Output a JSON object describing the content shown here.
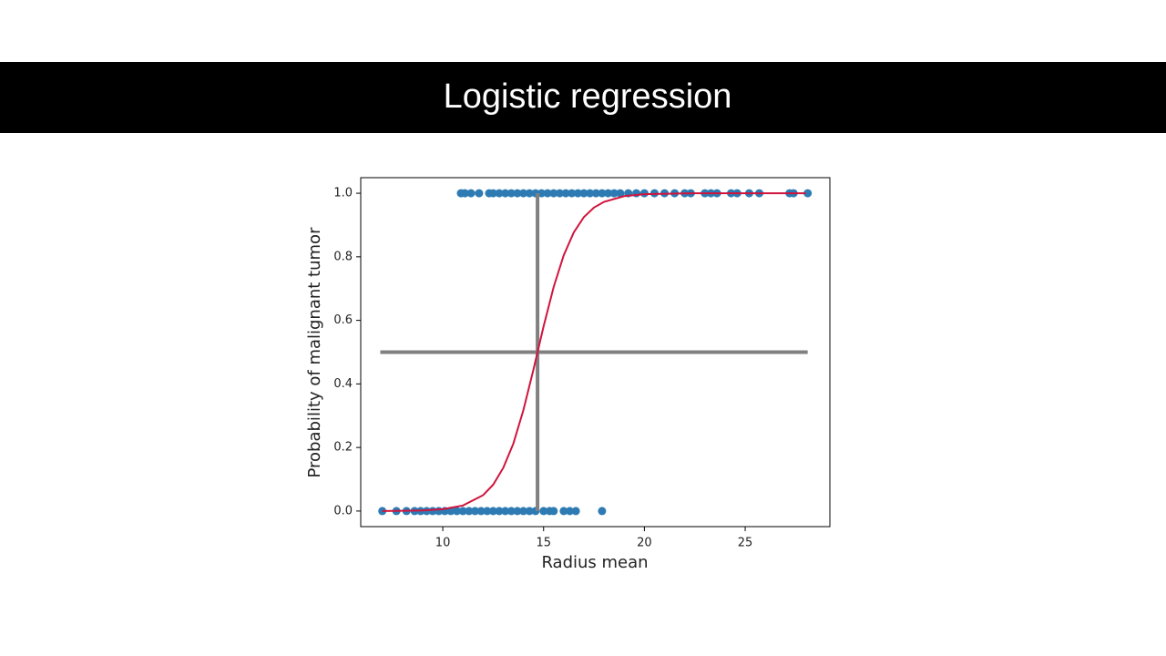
{
  "header": {
    "title": "Logistic regression"
  },
  "chart_data": {
    "type": "scatter",
    "xlabel": "Radius mean",
    "ylabel": "Probability of malignant tumor",
    "xlim": [
      5.93,
      29.2
    ],
    "ylim": [
      -0.049,
      1.049
    ],
    "xticks": [
      10,
      15,
      20,
      25
    ],
    "yticks": [
      {
        "value": 0,
        "label": "0.0"
      },
      0.2,
      0.4,
      0.6,
      0.8,
      {
        "value": 1,
        "label": "1.0"
      }
    ],
    "grid": false,
    "series": [
      {
        "type": "scatter",
        "color": "#2e7bb3",
        "x": [
          7.0,
          7.7,
          8.2,
          8.6,
          8.9,
          9.2,
          9.5,
          9.8,
          10.1,
          10.4,
          10.7,
          11.0,
          11.3,
          11.6,
          11.9,
          12.2,
          12.5,
          12.8,
          13.1,
          13.4,
          13.7,
          14.0,
          14.3,
          14.6,
          15.0,
          15.3,
          15.5,
          16.0,
          16.3,
          16.6,
          17.9
        ],
        "values": [
          0,
          0,
          0,
          0,
          0,
          0,
          0,
          0,
          0,
          0,
          0,
          0,
          0,
          0,
          0,
          0,
          0,
          0,
          0,
          0,
          0,
          0,
          0,
          0,
          0,
          0,
          0,
          0,
          0,
          0,
          0
        ]
      },
      {
        "type": "scatter",
        "color": "#2e7bb3",
        "x": [
          10.9,
          11.1,
          11.4,
          11.8,
          12.3,
          12.5,
          12.8,
          13.1,
          13.4,
          13.7,
          14.0,
          14.3,
          14.6,
          14.9,
          15.2,
          15.5,
          15.8,
          16.1,
          16.4,
          16.7,
          17.0,
          17.3,
          17.6,
          17.9,
          18.2,
          18.5,
          18.8,
          19.2,
          19.6,
          20.0,
          20.5,
          21.0,
          21.5,
          22.0,
          22.3,
          23.0,
          23.3,
          23.6,
          24.3,
          24.6,
          25.2,
          25.7,
          27.2,
          27.4,
          28.1
        ],
        "values": [
          1,
          1,
          1,
          1,
          1,
          1,
          1,
          1,
          1,
          1,
          1,
          1,
          1,
          1,
          1,
          1,
          1,
          1,
          1,
          1,
          1,
          1,
          1,
          1,
          1,
          1,
          1,
          1,
          1,
          1,
          1,
          1,
          1,
          1,
          1,
          1,
          1,
          1,
          1,
          1,
          1,
          1,
          1,
          1,
          1
        ]
      },
      {
        "type": "line",
        "color": "#808080",
        "x": [
          6.9,
          28.1
        ],
        "values": [
          0.5,
          0.5
        ]
      },
      {
        "type": "line",
        "color": "#808080",
        "x": [
          14.7,
          14.7
        ],
        "values": [
          0,
          1
        ]
      },
      {
        "type": "line",
        "color": "#d0143c",
        "x": [
          7,
          8,
          9,
          10,
          11,
          12,
          12.5,
          13,
          13.5,
          14,
          14.5,
          15,
          15.5,
          16,
          16.5,
          17,
          17.5,
          18,
          19,
          20,
          22,
          24,
          26,
          28
        ],
        "values": [
          0.00023,
          0.00067,
          0.002,
          0.0059,
          0.0175,
          0.05,
          0.083,
          0.136,
          0.212,
          0.318,
          0.446,
          0.581,
          0.705,
          0.805,
          0.877,
          0.925,
          0.955,
          0.973,
          0.991,
          0.997,
          0.9997,
          1,
          1,
          1
        ]
      }
    ]
  }
}
